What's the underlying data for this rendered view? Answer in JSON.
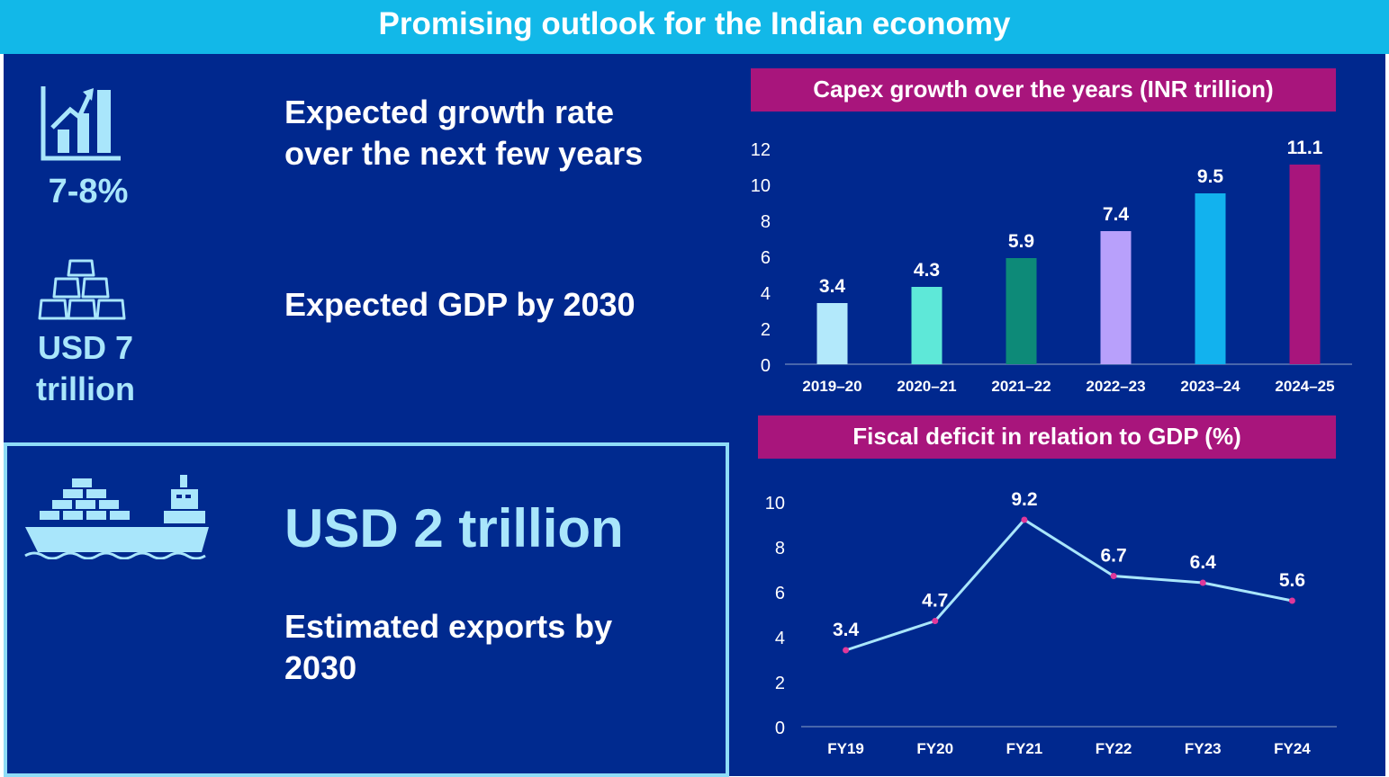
{
  "header": {
    "title": "Promising outlook for the Indian economy"
  },
  "kpis": {
    "growth": {
      "value": "7-8%",
      "desc_line1": "Expected growth rate",
      "desc_line2": "over the next few years"
    },
    "gdp": {
      "value_line1": "USD 7",
      "value_line2": "trillion",
      "desc": "Expected GDP by 2030"
    },
    "exports": {
      "value": "USD 2 trillion",
      "desc_line1": "Estimated exports by",
      "desc_line2": "2030"
    }
  },
  "colors": {
    "header_bg": "#12b8e8",
    "panel_bg": "#00288e",
    "chart_title_bg": "#a8157c",
    "accent_light": "#a9e6fb",
    "line": "#a9e6fb",
    "marker": "#e0389a"
  },
  "chart_data": [
    {
      "type": "bar",
      "title": "Capex growth over the years (INR trillion)",
      "categories": [
        "2019–20",
        "2020–21",
        "2021–22",
        "2022–23",
        "2023–24",
        "2024–25"
      ],
      "values": [
        3.4,
        4.3,
        5.9,
        7.4,
        9.5,
        11.1
      ],
      "value_labels": [
        "3.4",
        "4.3",
        "5.9",
        "7.4",
        "9.5",
        "11.1"
      ],
      "bar_colors": [
        "#b3e9fb",
        "#5ee8d8",
        "#0d8a78",
        "#b8a0fb",
        "#12b2ee",
        "#a8157c"
      ],
      "yticks": [
        "0",
        "2",
        "4",
        "6",
        "8",
        "10",
        "12"
      ],
      "ylim": [
        0,
        12
      ],
      "xlabel": "",
      "ylabel": ""
    },
    {
      "type": "line",
      "title": "Fiscal deficit in relation to GDP (%)",
      "categories": [
        "FY19",
        "FY20",
        "FY21",
        "FY22",
        "FY23",
        "FY24"
      ],
      "values": [
        3.4,
        4.7,
        9.2,
        6.7,
        6.4,
        5.6
      ],
      "value_labels": [
        "3.4",
        "4.7",
        "9.2",
        "6.7",
        "6.4",
        "5.6"
      ],
      "yticks": [
        "0",
        "2",
        "4",
        "6",
        "8",
        "10"
      ],
      "ylim": [
        0,
        10
      ],
      "xlabel": "",
      "ylabel": ""
    }
  ]
}
